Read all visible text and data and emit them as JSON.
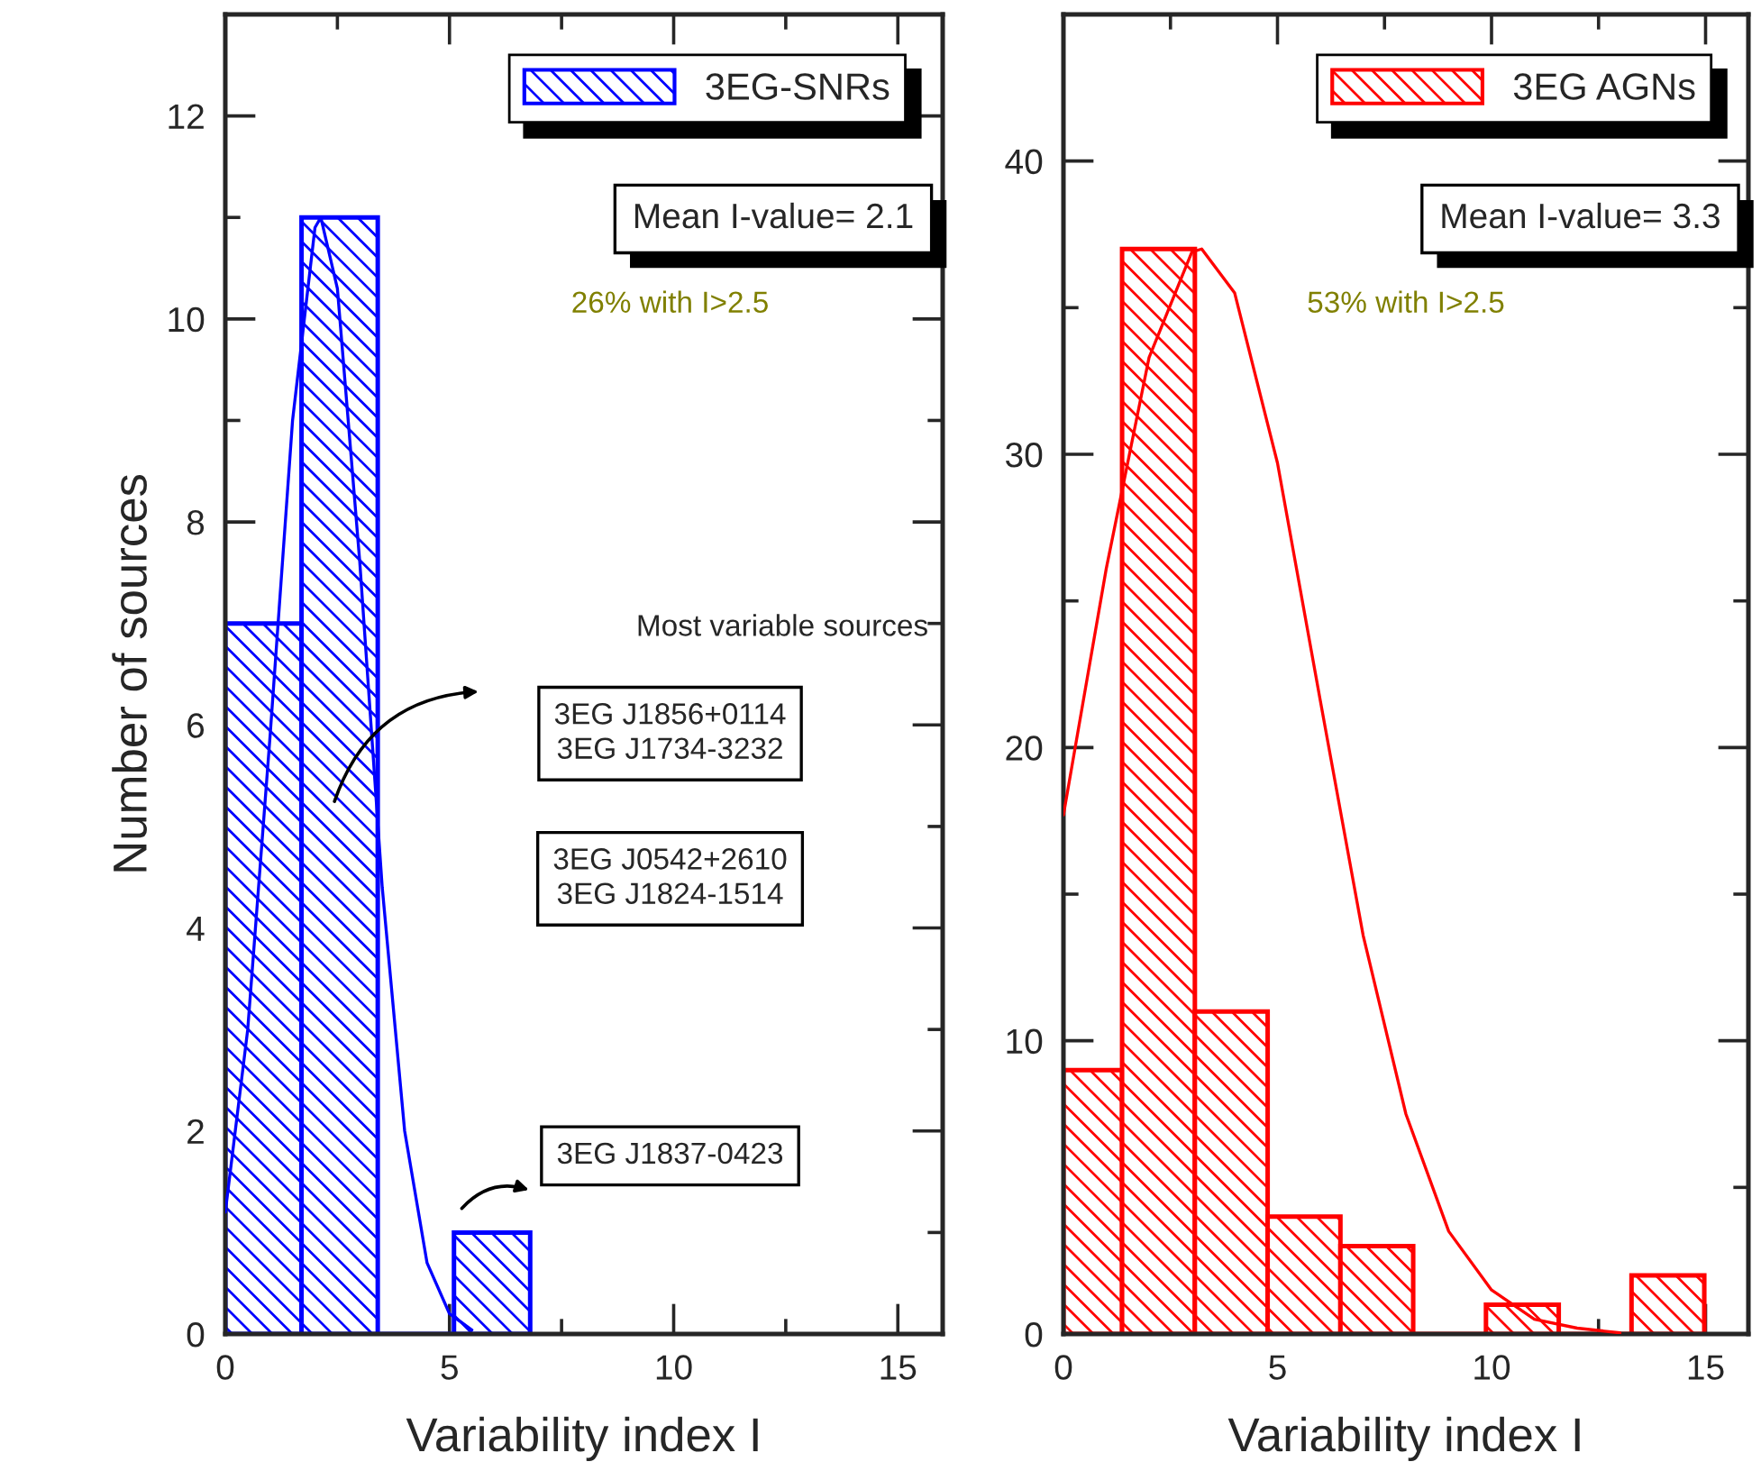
{
  "chart_data": [
    {
      "type": "histogram",
      "xlabel": "Variability index I",
      "ylabel": "Number of sources",
      "bins": [
        0,
        1.7,
        3.4,
        5.1,
        6.8
      ],
      "xlim": [
        0,
        16
      ],
      "ylim": [
        0,
        13
      ],
      "xticks": [
        0,
        5,
        10,
        15
      ],
      "yticks": [
        0,
        2,
        4,
        6,
        8,
        10,
        12
      ],
      "legend": "top right",
      "series": [
        {
          "name": "3EG-SNRs",
          "color": "#0000ff",
          "values": [
            7,
            11,
            0,
            1
          ]
        },
        {
          "type": "line",
          "color": "#0000ff",
          "x": [
            0,
            0.5,
            1,
            1.5,
            2,
            2.13,
            2.5,
            3,
            3.5,
            4,
            4.5,
            5,
            5.5
          ],
          "values": [
            1.2,
            3.0,
            5.9,
            9.0,
            10.9,
            11,
            10.3,
            7.6,
            4.4,
            2.0,
            0.7,
            0.2,
            0.04
          ]
        }
      ],
      "annotations": [
        "Mean I-value= 2.1",
        "26% with I>2.5",
        "Most variable sources",
        "3EG J1856+0114\n3EG J1734-3232",
        "3EG J0542+2610\n3EG J1824-1514",
        "3EG J1837-0423"
      ]
    },
    {
      "type": "histogram",
      "xlabel": "Variability index I",
      "bins": [
        0,
        1.37,
        3.07,
        4.77,
        6.47,
        8.17,
        9.87,
        11.57,
        13.27,
        14.97
      ],
      "xlim": [
        0,
        16
      ],
      "ylim": [
        0,
        45
      ],
      "xticks": [
        0,
        5,
        10,
        15
      ],
      "yticks": [
        0,
        10,
        20,
        30,
        40
      ],
      "legend": "top right",
      "series": [
        {
          "name": "3EG AGNs",
          "color": "#ff0000",
          "values": [
            9,
            37,
            11,
            4,
            3,
            0,
            1,
            0,
            2
          ]
        },
        {
          "type": "line",
          "color": "#ff0000",
          "x": [
            0,
            1,
            2,
            3,
            3.23,
            4,
            5,
            6,
            7,
            8,
            9,
            10,
            11,
            12,
            13
          ],
          "values": [
            17.7,
            26.1,
            33.3,
            36.9,
            37,
            35.5,
            29.7,
            21.6,
            13.6,
            7.5,
            3.5,
            1.5,
            0.5,
            0.2,
            0.04
          ]
        }
      ],
      "annotations": [
        "Mean I-value= 3.3",
        "53% with I>2.5"
      ]
    }
  ]
}
